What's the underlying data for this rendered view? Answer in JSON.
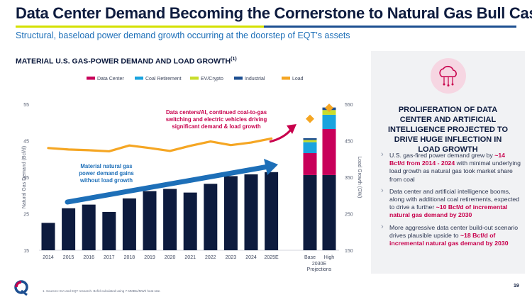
{
  "slide": {
    "title": "Data Center Demand Becoming the Cornerstone to Natural Gas Bull Case",
    "subtitle": "Structural, baseload power demand growth occurring at the doorstep of EQT’s assets",
    "chart_heading": "MATERIAL U.S. GAS-POWER DEMAND AND LOAD GROWTH",
    "chart_heading_sup": "(1)",
    "footnote": "1. Sources: EIA and EQT research. Bcf/d calculated using 7 MMBtu/MWh heat rate.",
    "page_number": "19"
  },
  "panel": {
    "icon": "cloud-circuit-icon",
    "title": "PROLIFERATION OF DATA CENTER AND ARTIFICIAL INTELLIGENCE PROJECTED TO DRIVE HUGE INFLECTION IN LOAD GROWTH",
    "bullets": [
      {
        "pre": "U.S. gas-fired power demand grew by ",
        "hl": "~14 Bcf/d from 2014 - 2024",
        "post": " with minimal underlying load growth as natural gas took market share from coal"
      },
      {
        "pre": "Data center and artificial intelligence booms, along with additional coal retirements, expected to drive a further ",
        "hl": "~10 Bcf/d of incremental natural gas demand by 2030",
        "post": ""
      },
      {
        "pre": "More aggressive data center build-out scenario drives plausible upside to ",
        "hl": "~18 Bcf/d of incremental natural gas demand by 2030",
        "post": ""
      }
    ]
  },
  "chart_data": {
    "type": "bar",
    "categories": [
      "2014",
      "2015",
      "2016",
      "2017",
      "2018",
      "2019",
      "2020",
      "2021",
      "2022",
      "2023",
      "2024",
      "2025E",
      "Base",
      "High"
    ],
    "group_label": "2030E\nProjections",
    "ylabel": "Natural Gas Demand (Bcf/d)",
    "ylabel_right": "Load Growth (GW)",
    "ylim": [
      15,
      55
    ],
    "yticks": [
      15,
      25,
      35,
      45,
      55
    ],
    "ylim_right": [
      150,
      550
    ],
    "yticks_right": [
      150,
      250,
      350,
      450,
      550
    ],
    "legend": [
      "Data Center",
      "Coal Retirement",
      "EV/Crypto",
      "Industrial",
      "Load"
    ],
    "series": [
      {
        "name": "Industrial",
        "color": "#0d1b3e",
        "values": [
          22.5,
          26.5,
          27.5,
          25.5,
          29.2,
          31.2,
          31.8,
          30.8,
          33.2,
          35.3,
          35.8,
          36.4,
          35.6,
          35.6
        ]
      },
      {
        "name": "Data Center",
        "color": "#c8005a",
        "values": [
          0,
          0,
          0,
          0,
          0,
          0,
          0,
          0,
          0,
          0,
          0,
          0,
          6.0,
          12.6
        ]
      },
      {
        "name": "Coal Retirement",
        "color": "#1aa3de",
        "values": [
          0,
          0,
          0,
          0,
          0,
          0,
          0,
          0,
          0,
          0,
          0,
          0,
          3.0,
          3.9
        ]
      },
      {
        "name": "EV/Crypto",
        "color": "#c9dd2c",
        "values": [
          0,
          0,
          0,
          0,
          0,
          0,
          0,
          0,
          0,
          0,
          0,
          0,
          0.6,
          1.3
        ]
      },
      {
        "name": "Industrial (projected)",
        "color": "#1d4f91",
        "values": [
          0,
          0,
          0,
          0,
          0,
          0,
          0,
          0,
          0,
          0,
          0,
          0,
          0.5,
          0.7
        ]
      }
    ],
    "load_series": {
      "name": "Load",
      "color": "#f5a623",
      "values": [
        430,
        426,
        424,
        421,
        437,
        430,
        422,
        436,
        448,
        438,
        445,
        456
      ],
      "projected_values": {
        "Base": 510,
        "High": 540
      }
    },
    "annotations": [
      {
        "text": "Data centers/AI, continued coal-to-gas\nswitching and electric vehicles driving\nsignificant demand & load growth",
        "color": "#c8004c"
      },
      {
        "text": "Material natural gas\npower demand gains\nwithout load growth",
        "color": "#1d6fb8"
      }
    ]
  }
}
